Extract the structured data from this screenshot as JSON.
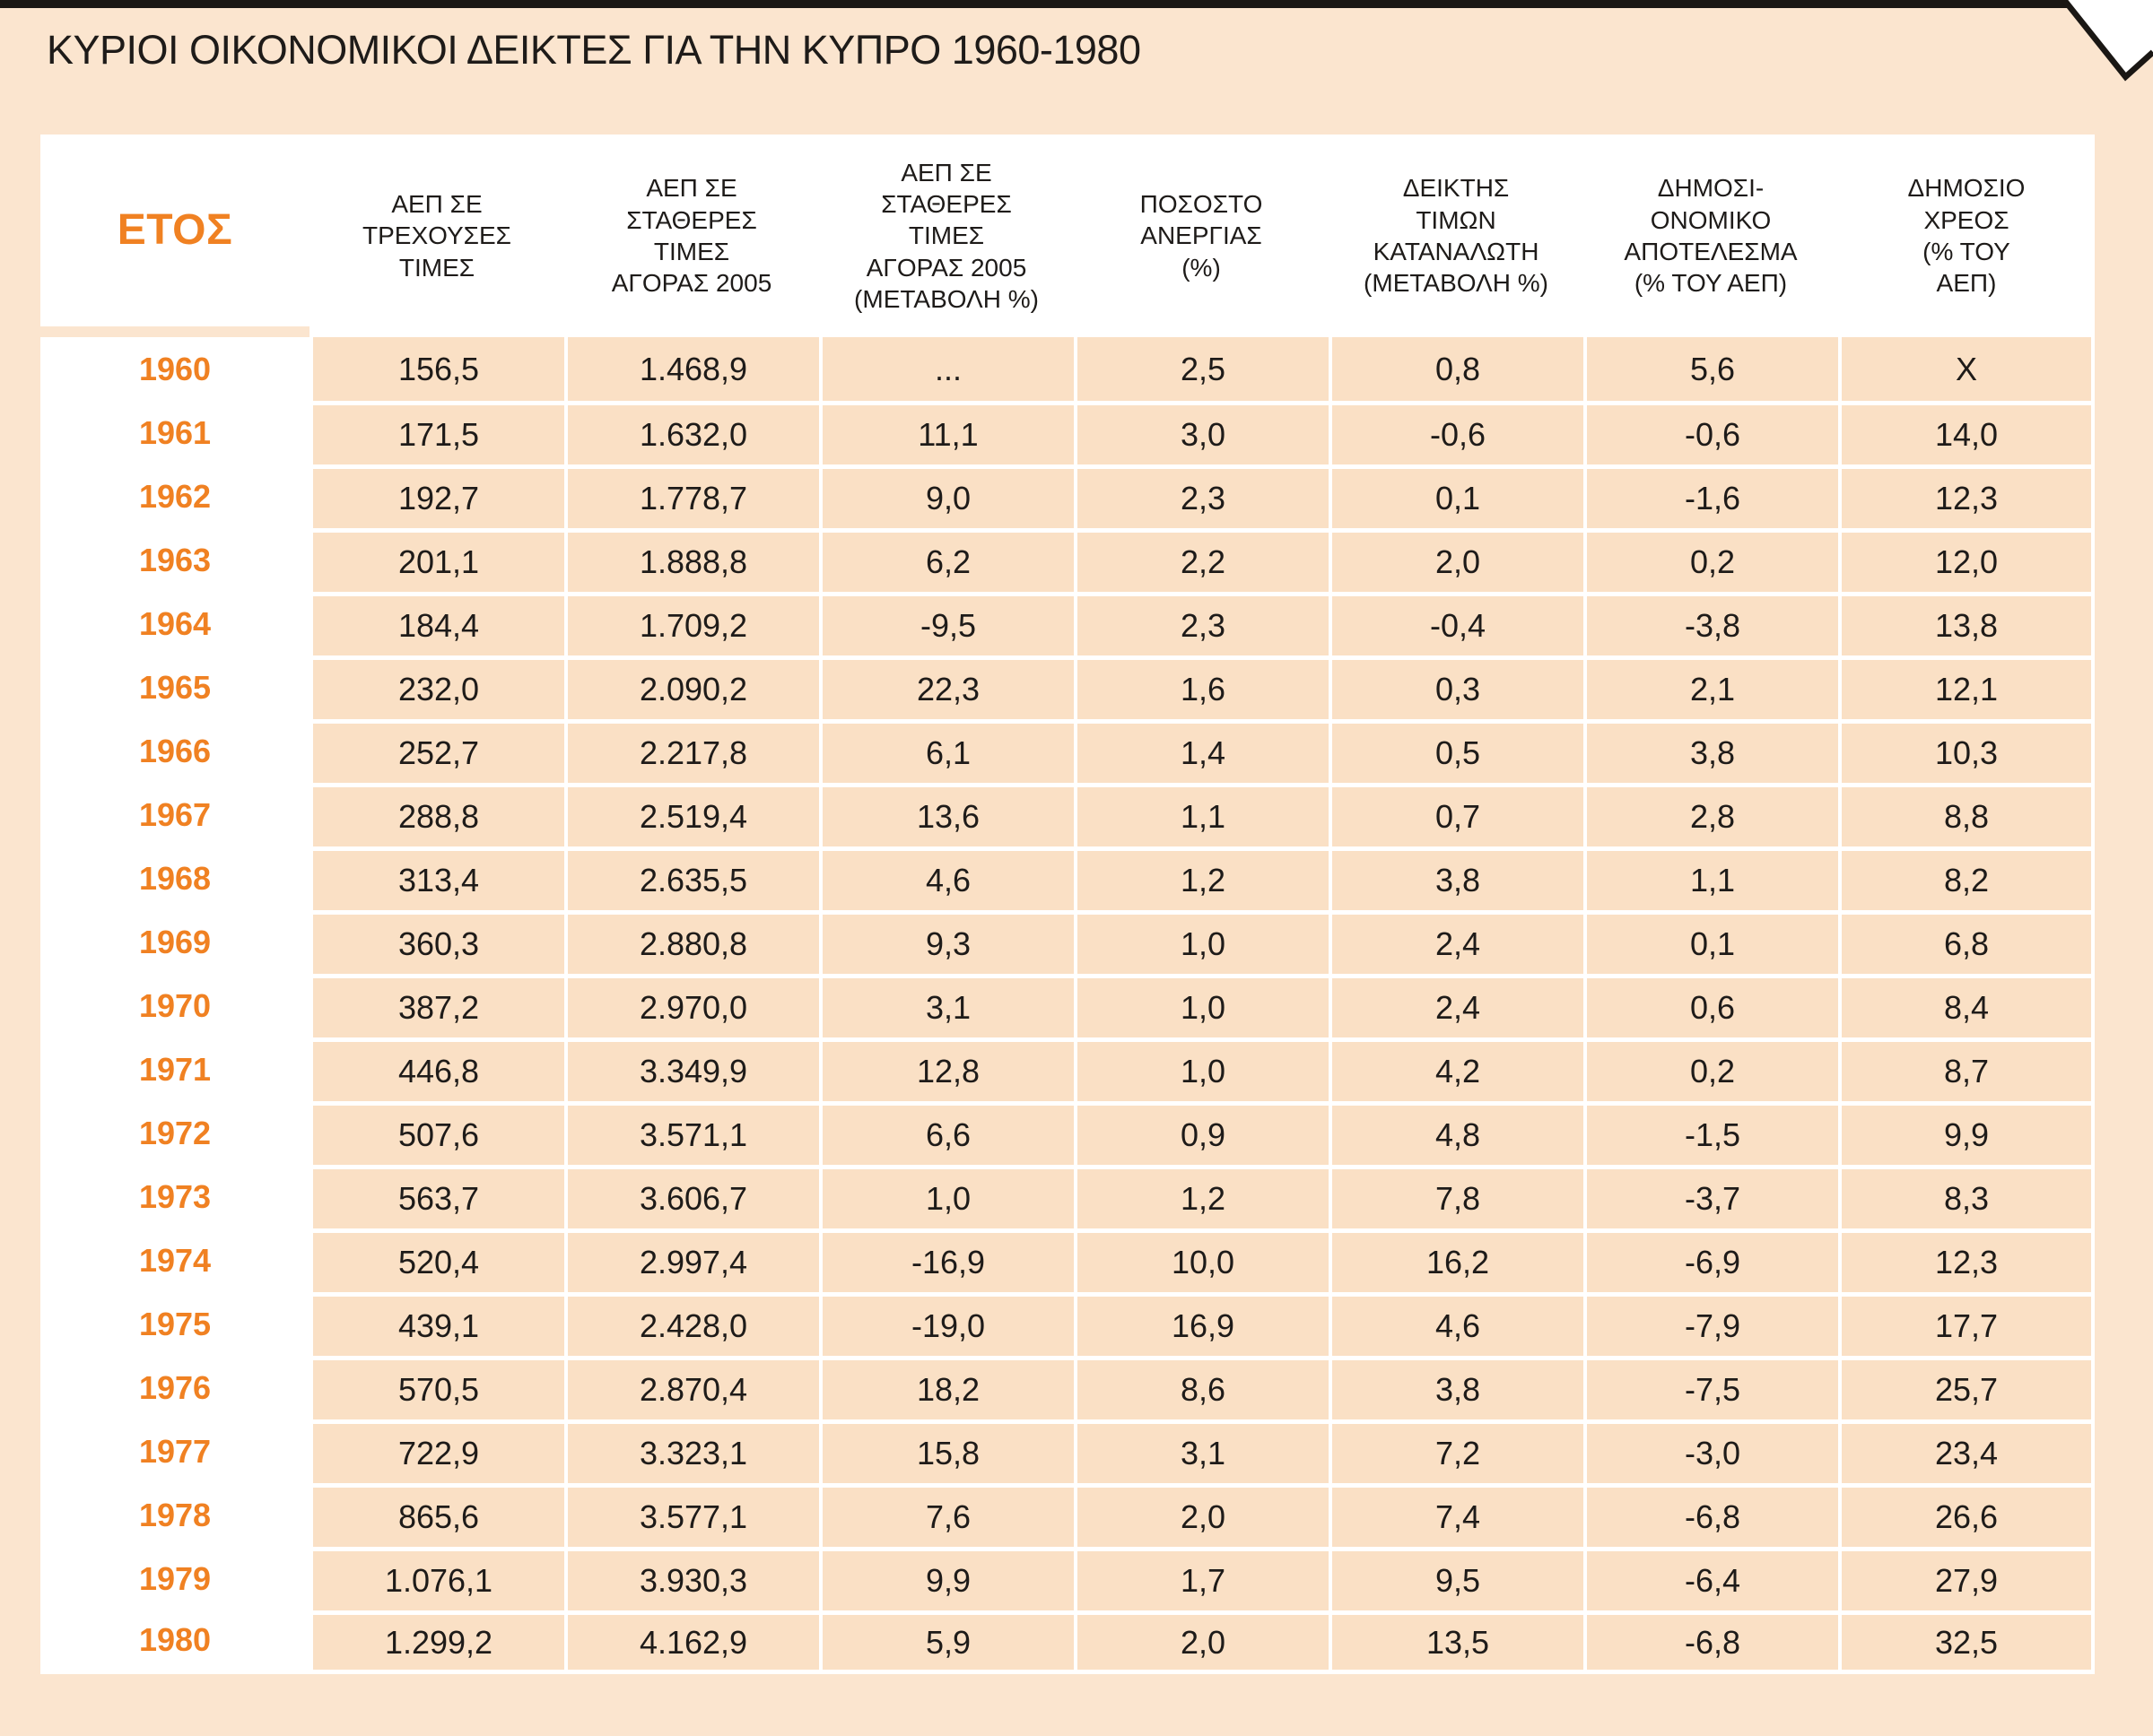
{
  "page": {
    "title": "ΚΥΡΙΟΙ ΟΙΚΟΝΟΜΙΚΟΙ ΔΕΙΚΤΕΣ ΓΙΑ ΤΗΝ ΚΥΠΡΟ 1960-1980",
    "colors": {
      "page_background": "#FBE5CF",
      "cell_background": "#FAE0C5",
      "header_background": "#FFFFFF",
      "accent_orange": "#F08122",
      "text_black": "#1E1B19",
      "grid_white": "#FFFFFF",
      "edge_black": "#1A1714"
    }
  },
  "table": {
    "columns": [
      {
        "id": "year",
        "label": "ΕΤΟΣ"
      },
      {
        "id": "gdp_current_prices",
        "label": "ΑΕΠ ΣΕ\nΤΡΕΧΟΥΣΕΣ\nΤΙΜΕΣ"
      },
      {
        "id": "gdp_constant_2005",
        "label": "ΑΕΠ ΣΕ\nΣΤΑΘΕΡΕΣ\nΤΙΜΕΣ\nΑΓΟΡΑΣ 2005"
      },
      {
        "id": "gdp_constant_2005_change",
        "label": "ΑΕΠ ΣΕ\nΣΤΑΘΕΡΕΣ\nΤΙΜΕΣ\nΑΓΟΡΑΣ 2005\n(ΜΕΤΑΒΟΛΗ %)"
      },
      {
        "id": "unemployment_rate",
        "label": "ΠΟΣΟΣΤΟ\nΑΝΕΡΓΙΑΣ\n(%)"
      },
      {
        "id": "cpi_change",
        "label": "ΔΕΙΚΤΗΣ\nΤΙΜΩΝ\nΚΑΤΑΝΑΛΩΤΗ\n(ΜΕΤΑΒΟΛΗ %)"
      },
      {
        "id": "fiscal_balance",
        "label": "ΔΗΜΟΣΙ-\nΟΝΟΜΙΚΟ\nΑΠΟΤΕΛΕΣΜΑ\n(% ΤΟΥ ΑΕΠ)"
      },
      {
        "id": "public_debt",
        "label": "ΔΗΜΟΣΙΟ\nΧΡΕΟΣ\n(% ΤΟΥ\nΑΕΠ)"
      }
    ],
    "rows": [
      {
        "year": "1960",
        "values": [
          "156,5",
          "1.468,9",
          "...",
          "2,5",
          "0,8",
          "5,6",
          "X"
        ]
      },
      {
        "year": "1961",
        "values": [
          "171,5",
          "1.632,0",
          "11,1",
          "3,0",
          "-0,6",
          "-0,6",
          "14,0"
        ]
      },
      {
        "year": "1962",
        "values": [
          "192,7",
          "1.778,7",
          "9,0",
          "2,3",
          "0,1",
          "-1,6",
          "12,3"
        ]
      },
      {
        "year": "1963",
        "values": [
          "201,1",
          "1.888,8",
          "6,2",
          "2,2",
          "2,0",
          "0,2",
          "12,0"
        ]
      },
      {
        "year": "1964",
        "values": [
          "184,4",
          "1.709,2",
          "-9,5",
          "2,3",
          "-0,4",
          "-3,8",
          "13,8"
        ]
      },
      {
        "year": "1965",
        "values": [
          "232,0",
          "2.090,2",
          "22,3",
          "1,6",
          "0,3",
          "2,1",
          "12,1"
        ]
      },
      {
        "year": "1966",
        "values": [
          "252,7",
          "2.217,8",
          "6,1",
          "1,4",
          "0,5",
          "3,8",
          "10,3"
        ]
      },
      {
        "year": "1967",
        "values": [
          "288,8",
          "2.519,4",
          "13,6",
          "1,1",
          "0,7",
          "2,8",
          "8,8"
        ]
      },
      {
        "year": "1968",
        "values": [
          "313,4",
          "2.635,5",
          "4,6",
          "1,2",
          "3,8",
          "1,1",
          "8,2"
        ]
      },
      {
        "year": "1969",
        "values": [
          "360,3",
          "2.880,8",
          "9,3",
          "1,0",
          "2,4",
          "0,1",
          "6,8"
        ]
      },
      {
        "year": "1970",
        "values": [
          "387,2",
          "2.970,0",
          "3,1",
          "1,0",
          "2,4",
          "0,6",
          "8,4"
        ]
      },
      {
        "year": "1971",
        "values": [
          "446,8",
          "3.349,9",
          "12,8",
          "1,0",
          "4,2",
          "0,2",
          "8,7"
        ]
      },
      {
        "year": "1972",
        "values": [
          "507,6",
          "3.571,1",
          "6,6",
          "0,9",
          "4,8",
          "-1,5",
          "9,9"
        ]
      },
      {
        "year": "1973",
        "values": [
          "563,7",
          "3.606,7",
          "1,0",
          "1,2",
          "7,8",
          "-3,7",
          "8,3"
        ]
      },
      {
        "year": "1974",
        "values": [
          "520,4",
          "2.997,4",
          "-16,9",
          "10,0",
          "16,2",
          "-6,9",
          "12,3"
        ]
      },
      {
        "year": "1975",
        "values": [
          "439,1",
          "2.428,0",
          "-19,0",
          "16,9",
          "4,6",
          "-7,9",
          "17,7"
        ]
      },
      {
        "year": "1976",
        "values": [
          "570,5",
          "2.870,4",
          "18,2",
          "8,6",
          "3,8",
          "-7,5",
          "25,7"
        ]
      },
      {
        "year": "1977",
        "values": [
          "722,9",
          "3.323,1",
          "15,8",
          "3,1",
          "7,2",
          "-3,0",
          "23,4"
        ]
      },
      {
        "year": "1978",
        "values": [
          "865,6",
          "3.577,1",
          "7,6",
          "2,0",
          "7,4",
          "-6,8",
          "26,6"
        ]
      },
      {
        "year": "1979",
        "values": [
          "1.076,1",
          "3.930,3",
          "9,9",
          "1,7",
          "9,5",
          "-6,4",
          "27,9"
        ]
      },
      {
        "year": "1980",
        "values": [
          "1.299,2",
          "4.162,9",
          "5,9",
          "2,0",
          "13,5",
          "-6,8",
          "32,5"
        ]
      }
    ]
  }
}
